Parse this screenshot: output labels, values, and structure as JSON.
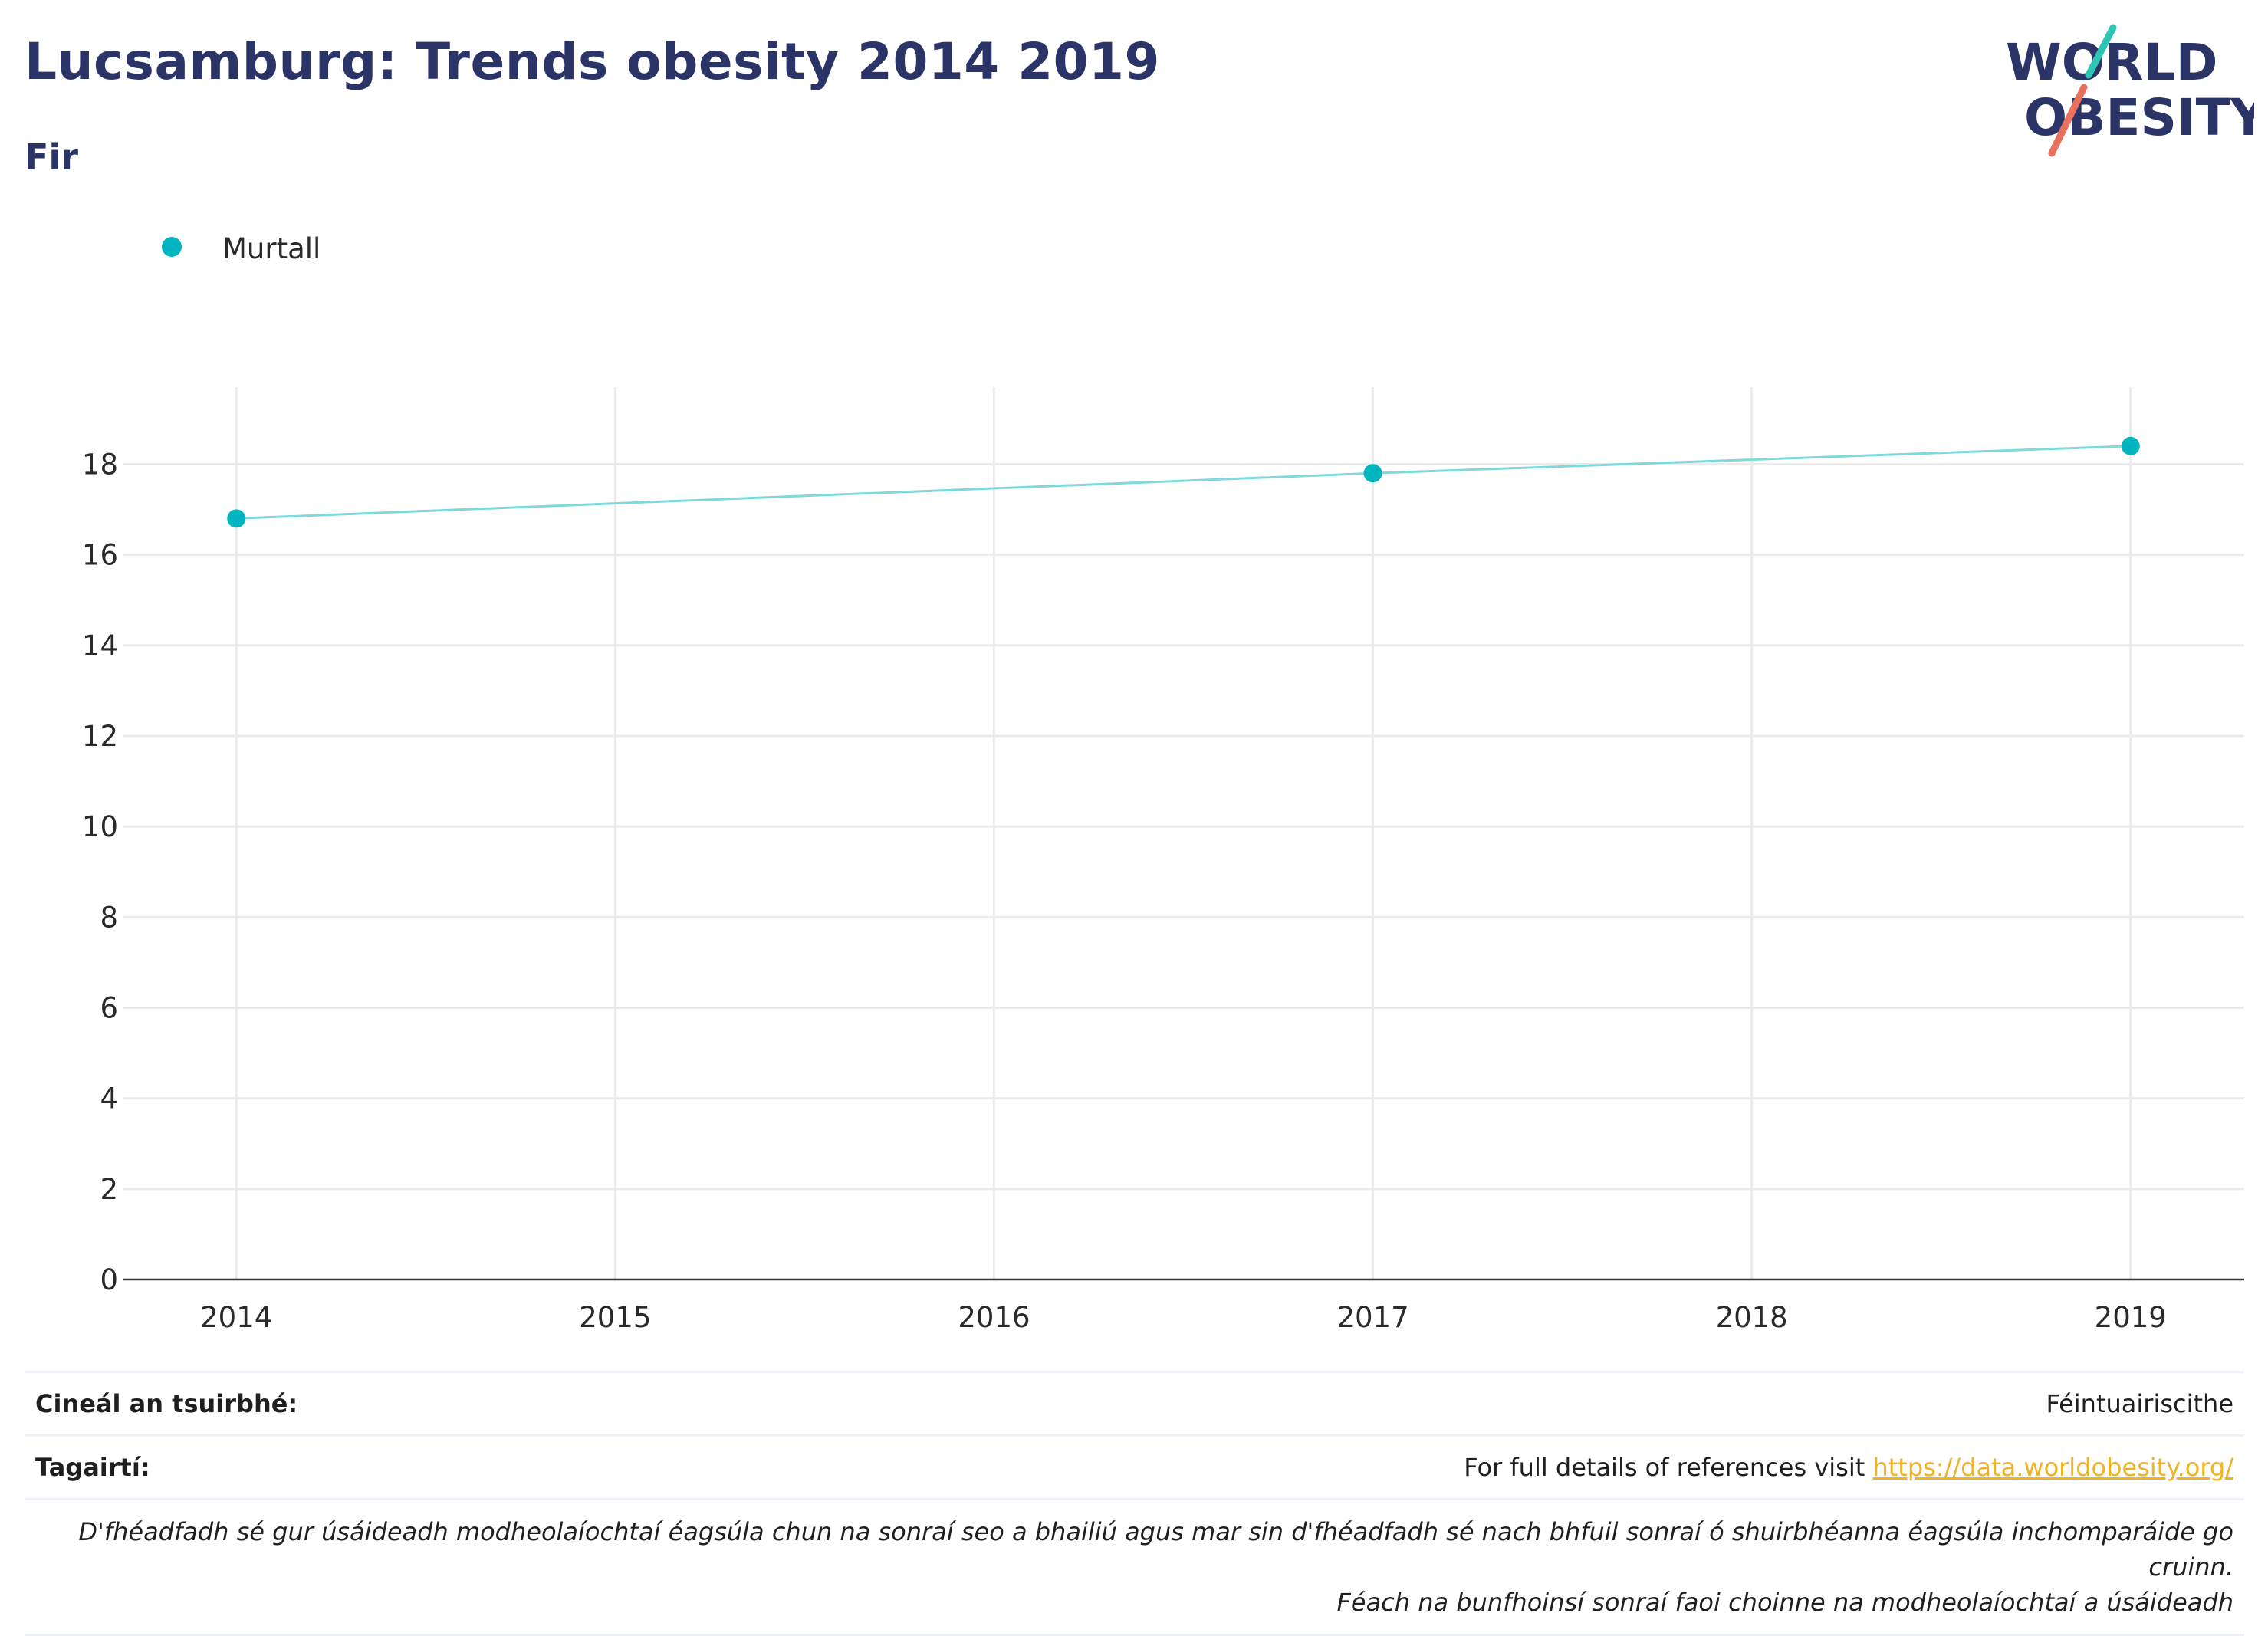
{
  "header": {
    "title": "Lucsamburg: Trends obesity 2014 2019",
    "subtitle": "Fir"
  },
  "logo": {
    "line1": "WORLD",
    "line2": "OBESITY",
    "colors": {
      "text": "#2b3467",
      "teal": "#2ec4b6",
      "coral": "#e8705d"
    }
  },
  "chart_data": {
    "type": "line",
    "x": [
      2014,
      2017,
      2019
    ],
    "series": [
      {
        "name": "Murtall",
        "values": [
          16.8,
          17.8,
          18.4
        ],
        "color": "#00b5c0",
        "line_color": "#7fd8dc"
      }
    ],
    "x_ticks": [
      "2014",
      "2015",
      "2016",
      "2017",
      "2018",
      "2019"
    ],
    "y_ticks": [
      "0",
      "2",
      "4",
      "6",
      "8",
      "10",
      "12",
      "14",
      "16",
      "18"
    ],
    "xlim": [
      2013.7,
      2019.3
    ],
    "ylim": [
      0,
      19.7
    ],
    "grid": true,
    "legend_placement": "top-left"
  },
  "info": {
    "survey_type_label": "Cineál an tsuirbhé:",
    "survey_type_value": "Féintuairiscithe",
    "references_label": "Tagairtí:",
    "references_text": "For full details of references visit ",
    "references_link": "https://data.worldobesity.org/",
    "note_line1": "D'fhéadfadh sé gur úsáideadh modheolaíochtaí éagsúla chun na sonraí seo a bhailiú agus mar sin d'fhéadfadh sé nach bhfuil sonraí ó shuirbhéanna éagsúla inchomparáide go cruinn.",
    "note_line2": "Féach na bunfhoinsí sonraí faoi choinne na modheolaíochtaí a úsáideadh"
  }
}
